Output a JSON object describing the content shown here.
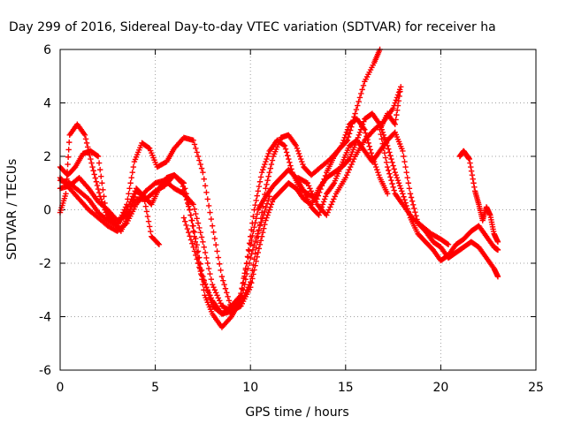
{
  "chart_data": {
    "type": "scatter",
    "title": "Day 299 of 2016, Sidereal Day-to-day VTEC variation (SDTVAR) for receiver ha",
    "xlabel": "GPS time / hours",
    "ylabel": "SDTVAR / TECUs",
    "xlim": [
      0,
      25
    ],
    "ylim": [
      -6,
      6
    ],
    "xticks": [
      0,
      5,
      10,
      15,
      20,
      25
    ],
    "yticks": [
      -6,
      -4,
      -2,
      0,
      2,
      4,
      6
    ],
    "grid": true,
    "marker": "plus",
    "color": "#ff0000",
    "series": [
      {
        "points": [
          [
            0,
            -0.1
          ],
          [
            0.3,
            0.6
          ],
          [
            0.5,
            2.8
          ],
          [
            0.9,
            3.2
          ],
          [
            1.3,
            2.8
          ],
          [
            1.7,
            1.6
          ],
          [
            2.1,
            0.5
          ],
          [
            2.5,
            -0.3
          ],
          [
            3.0,
            -0.6
          ],
          [
            3.5,
            0.2
          ],
          [
            3.9,
            1.8
          ],
          [
            4.3,
            2.5
          ],
          [
            4.7,
            2.3
          ],
          [
            5.1,
            1.6
          ],
          [
            5.6,
            1.8
          ],
          [
            6.0,
            2.3
          ],
          [
            6.5,
            2.7
          ],
          [
            7.0,
            2.6
          ],
          [
            7.5,
            1.4
          ],
          [
            8.0,
            -0.6
          ],
          [
            8.5,
            -2.5
          ],
          [
            9.0,
            -3.7
          ],
          [
            9.5,
            -3.5
          ],
          [
            10.0,
            -2.7
          ],
          [
            10.4,
            -1.0
          ],
          [
            10.8,
            0.8
          ],
          [
            11.2,
            2.0
          ],
          [
            11.6,
            2.7
          ],
          [
            12.0,
            2.8
          ],
          [
            12.4,
            2.4
          ],
          [
            12.8,
            1.6
          ],
          [
            13.2,
            1.3
          ],
          [
            13.7,
            1.6
          ],
          [
            14.2,
            1.9
          ],
          [
            14.7,
            2.3
          ],
          [
            15.1,
            2.6
          ],
          [
            15.5,
            3.6
          ],
          [
            16.0,
            4.8
          ],
          [
            16.5,
            5.5
          ],
          [
            16.8,
            6.0
          ]
        ]
      },
      {
        "points": [
          [
            0,
            1.6
          ],
          [
            0.4,
            1.3
          ],
          [
            0.8,
            1.6
          ],
          [
            1.2,
            2.1
          ],
          [
            1.6,
            2.2
          ],
          [
            2.0,
            2.0
          ],
          [
            2.4,
            0.0
          ],
          [
            2.8,
            -0.4
          ],
          [
            3.2,
            -0.8
          ],
          [
            3.6,
            -0.2
          ],
          [
            4.0,
            0.7
          ],
          [
            4.4,
            0.5
          ],
          [
            4.8,
            0.2
          ],
          [
            5.2,
            0.8
          ],
          [
            5.6,
            1.2
          ],
          [
            6.0,
            1.3
          ],
          [
            6.4,
            1.0
          ],
          [
            6.8,
            0.0
          ],
          [
            7.2,
            -1.6
          ],
          [
            7.6,
            -3.2
          ],
          [
            8.0,
            -3.9
          ],
          [
            8.5,
            -4.4
          ],
          [
            9.0,
            -4.0
          ],
          [
            9.4,
            -3.5
          ],
          [
            9.8,
            -2.0
          ],
          [
            10.2,
            0.0
          ],
          [
            10.6,
            1.4
          ],
          [
            11.0,
            2.2
          ],
          [
            11.4,
            2.6
          ],
          [
            11.8,
            2.4
          ],
          [
            12.2,
            1.4
          ],
          [
            12.6,
            0.8
          ],
          [
            13.0,
            0.6
          ],
          [
            13.5,
            0.4
          ],
          [
            14.0,
            1.4
          ],
          [
            14.4,
            2.0
          ],
          [
            14.8,
            2.4
          ],
          [
            15.2,
            3.2
          ],
          [
            15.6,
            3.4
          ],
          [
            16.0,
            3.0
          ],
          [
            16.4,
            2.0
          ],
          [
            16.8,
            1.2
          ],
          [
            17.2,
            0.6
          ]
        ]
      },
      {
        "points": [
          [
            0,
            1.2
          ],
          [
            0.5,
            0.8
          ],
          [
            1.0,
            0.4
          ],
          [
            1.5,
            0.0
          ],
          [
            2.0,
            -0.3
          ],
          [
            2.5,
            -0.6
          ],
          [
            3.0,
            -0.8
          ],
          [
            3.5,
            -0.5
          ],
          [
            4.0,
            0.2
          ],
          [
            4.5,
            0.7
          ],
          [
            5.0,
            1.0
          ],
          [
            5.5,
            1.1
          ],
          [
            6.0,
            0.8
          ],
          [
            6.5,
            0.6
          ],
          [
            7.0,
            0.2
          ],
          [
            7.5,
            -1.2
          ],
          [
            8.0,
            -2.8
          ],
          [
            8.5,
            -3.6
          ],
          [
            9.0,
            -3.8
          ],
          [
            9.5,
            -3.6
          ],
          [
            10.0,
            -2.9
          ],
          [
            10.4,
            -1.6
          ],
          [
            10.8,
            -0.4
          ],
          [
            11.2,
            0.4
          ],
          [
            11.6,
            0.7
          ],
          [
            12.0,
            1.0
          ],
          [
            12.4,
            0.8
          ],
          [
            12.8,
            0.4
          ],
          [
            13.2,
            0.2
          ],
          [
            13.6,
            0.8
          ],
          [
            14.0,
            1.2
          ],
          [
            14.4,
            1.4
          ],
          [
            14.8,
            1.6
          ],
          [
            15.2,
            1.9
          ],
          [
            15.6,
            2.6
          ],
          [
            16.0,
            3.4
          ],
          [
            16.4,
            3.6
          ],
          [
            16.8,
            3.2
          ],
          [
            17.2,
            2.4
          ],
          [
            17.6,
            1.4
          ],
          [
            18.0,
            0.6
          ],
          [
            18.4,
            -0.3
          ],
          [
            18.8,
            -0.9
          ],
          [
            19.2,
            -1.2
          ],
          [
            19.6,
            -1.5
          ],
          [
            20.0,
            -1.9
          ],
          [
            20.4,
            -1.7
          ],
          [
            20.8,
            -1.3
          ],
          [
            21.2,
            -1.1
          ],
          [
            21.6,
            -0.8
          ],
          [
            22.0,
            -0.6
          ],
          [
            22.4,
            -1.0
          ],
          [
            22.8,
            -1.4
          ],
          [
            23.0,
            -1.5
          ]
        ]
      },
      {
        "points": [
          [
            0,
            0.8
          ],
          [
            0.5,
            0.9
          ],
          [
            1.0,
            1.2
          ],
          [
            1.5,
            0.8
          ],
          [
            2.0,
            0.3
          ],
          [
            2.5,
            0.0
          ],
          [
            3.0,
            -0.4
          ],
          [
            3.5,
            -0.2
          ],
          [
            4.0,
            0.4
          ],
          [
            4.5,
            0.4
          ],
          [
            5.0,
            0.7
          ],
          [
            5.5,
            0.9
          ],
          [
            6.0,
            1.3
          ],
          [
            6.5,
            1.0
          ],
          [
            7.0,
            -0.6
          ],
          [
            7.5,
            -2.5
          ],
          [
            8.0,
            -3.6
          ],
          [
            8.5,
            -3.9
          ],
          [
            9.0,
            -3.6
          ],
          [
            9.5,
            -3.2
          ],
          [
            10.0,
            -1.3
          ],
          [
            10.4,
            0.0
          ],
          [
            10.8,
            0.5
          ],
          [
            11.2,
            0.9
          ],
          [
            11.6,
            1.2
          ],
          [
            12.0,
            1.5
          ],
          [
            12.4,
            1.2
          ],
          [
            12.8,
            0.7
          ],
          [
            13.2,
            0.1
          ],
          [
            13.6,
            -0.2
          ],
          [
            14.0,
            0.6
          ],
          [
            14.4,
            1.0
          ],
          [
            14.8,
            1.7
          ],
          [
            15.2,
            2.4
          ],
          [
            15.6,
            2.6
          ],
          [
            16.0,
            2.2
          ],
          [
            16.4,
            1.8
          ],
          [
            16.8,
            2.2
          ],
          [
            17.2,
            2.6
          ],
          [
            17.6,
            2.9
          ],
          [
            18.0,
            2.2
          ],
          [
            18.4,
            0.6
          ],
          [
            18.8,
            -0.5
          ],
          [
            19.2,
            -0.8
          ],
          [
            19.6,
            -1.2
          ],
          [
            20.0,
            -1.4
          ],
          [
            20.4,
            -1.8
          ],
          [
            20.8,
            -1.6
          ],
          [
            21.2,
            -1.4
          ],
          [
            21.6,
            -1.2
          ],
          [
            22.0,
            -1.4
          ],
          [
            22.4,
            -1.8
          ],
          [
            22.8,
            -2.2
          ],
          [
            23.0,
            -2.5
          ]
        ]
      },
      {
        "points": [
          [
            0.0,
            1.1
          ],
          [
            0.5,
            1.0
          ],
          [
            1.0,
            0.7
          ],
          [
            1.5,
            0.4
          ],
          [
            2.0,
            -0.1
          ],
          [
            2.5,
            -0.4
          ],
          [
            3.0,
            -0.6
          ],
          [
            3.5,
            0.0
          ],
          [
            4.0,
            0.8
          ],
          [
            4.4,
            0.5
          ],
          [
            4.8,
            -1.0
          ],
          [
            5.2,
            -1.3
          ]
        ]
      },
      {
        "points": [
          [
            6.5,
            -0.3
          ],
          [
            7.0,
            -1.4
          ],
          [
            7.5,
            -2.6
          ],
          [
            8.0,
            -3.4
          ],
          [
            8.5,
            -3.9
          ],
          [
            9.0,
            -3.8
          ],
          [
            9.5,
            -3.4
          ],
          [
            10.0,
            -1.8
          ],
          [
            10.5,
            -0.6
          ],
          [
            11.0,
            0.5
          ]
        ]
      },
      {
        "points": [
          [
            12.5,
            1.2
          ],
          [
            13.0,
            1.0
          ],
          [
            13.5,
            0.2
          ],
          [
            14.0,
            -0.2
          ],
          [
            14.5,
            0.6
          ],
          [
            15.0,
            1.2
          ],
          [
            15.5,
            2.0
          ],
          [
            16.0,
            2.6
          ],
          [
            16.5,
            3.0
          ],
          [
            17.0,
            3.3
          ],
          [
            17.5,
            3.8
          ],
          [
            17.9,
            4.6
          ],
          [
            17.6,
            3.2
          ],
          [
            17.2,
            3.6
          ],
          [
            16.8,
            3.0
          ],
          [
            17.2,
            1.6
          ],
          [
            17.6,
            0.6
          ],
          [
            18.0,
            0.2
          ],
          [
            18.5,
            -0.3
          ],
          [
            19.0,
            -0.6
          ],
          [
            19.5,
            -0.9
          ],
          [
            20.0,
            -1.1
          ],
          [
            20.4,
            -1.3
          ]
        ]
      },
      {
        "points": [
          [
            21.0,
            2.0
          ],
          [
            21.2,
            2.2
          ],
          [
            21.4,
            2.0
          ],
          [
            21.5,
            1.9
          ],
          [
            21.8,
            0.7
          ],
          [
            22.0,
            0.2
          ],
          [
            22.2,
            -0.4
          ],
          [
            22.4,
            0.1
          ],
          [
            22.6,
            -0.2
          ],
          [
            22.8,
            -0.9
          ],
          [
            23.0,
            -1.2
          ]
        ]
      }
    ]
  }
}
